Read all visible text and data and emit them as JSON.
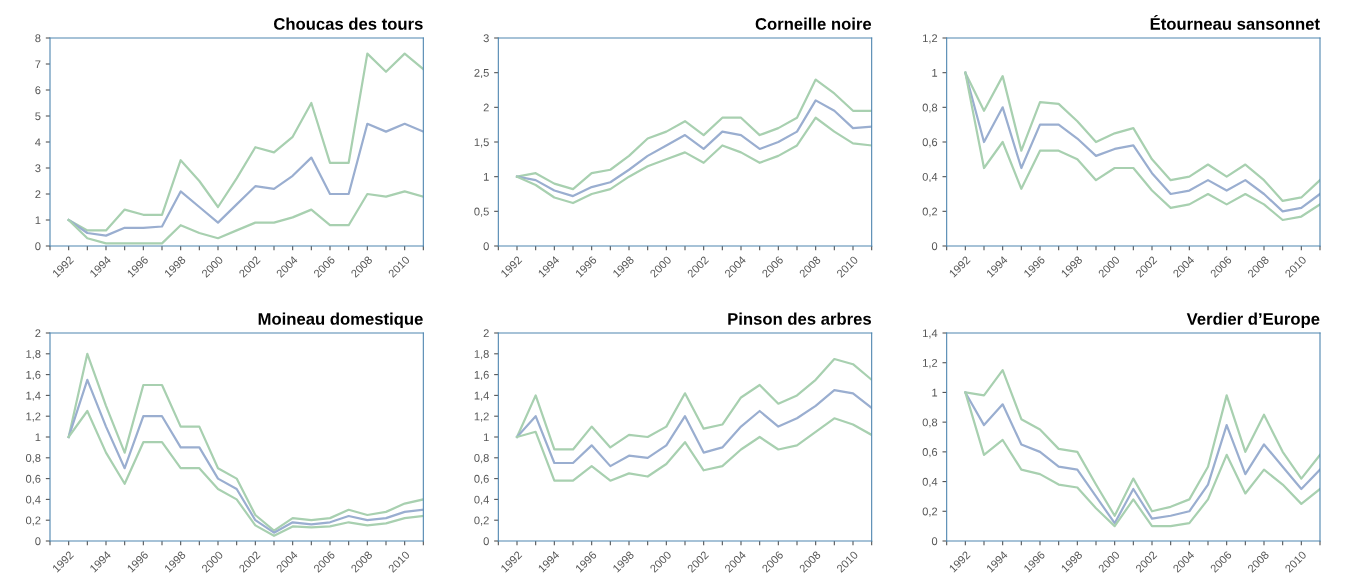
{
  "chart_data": [
    {
      "type": "line",
      "title": "Choucas des tours",
      "x": [
        1992,
        1993,
        1994,
        1995,
        1996,
        1997,
        1998,
        1999,
        2000,
        2001,
        2002,
        2003,
        2004,
        2005,
        2006,
        2007,
        2008,
        2009,
        2010,
        2011
      ],
      "xlim": [
        1991,
        2011
      ],
      "xticks": [
        {
          "value": 1991,
          "label": null
        },
        1992,
        {
          "value": 1993,
          "label": null
        },
        1994,
        {
          "value": 1995,
          "label": null
        },
        1996,
        {
          "value": 1997,
          "label": null
        },
        1998,
        {
          "value": 1999,
          "label": null
        },
        2000,
        {
          "value": 2001,
          "label": null
        },
        2002,
        {
          "value": 2003,
          "label": null
        },
        2004,
        {
          "value": 2005,
          "label": null
        },
        2006,
        {
          "value": 2007,
          "label": null
        },
        2008,
        {
          "value": 2009,
          "label": null
        },
        2010,
        {
          "value": 2011,
          "label": null
        }
      ],
      "ylim": [
        0,
        8
      ],
      "yticks": [
        0,
        1,
        2,
        3,
        4,
        5,
        6,
        7,
        8
      ],
      "series": [
        {
          "color": "#a8d0b0",
          "values": [
            1.0,
            0.6,
            0.6,
            1.4,
            1.2,
            1.2,
            3.3,
            2.5,
            1.5,
            2.6,
            3.8,
            3.6,
            4.2,
            5.5,
            3.2,
            3.2,
            7.4,
            6.7,
            7.4,
            6.8
          ]
        },
        {
          "color": "#9aaed0",
          "values": [
            1.0,
            0.5,
            0.4,
            0.7,
            0.7,
            0.75,
            2.1,
            1.5,
            0.9,
            1.6,
            2.3,
            2.2,
            2.7,
            3.4,
            2.0,
            2.0,
            4.7,
            4.4,
            4.7,
            4.4
          ]
        },
        {
          "color": "#a8d0b0",
          "values": [
            1.0,
            0.3,
            0.1,
            0.1,
            0.1,
            0.1,
            0.8,
            0.5,
            0.3,
            0.6,
            0.9,
            0.9,
            1.1,
            1.4,
            0.8,
            0.8,
            2.0,
            1.9,
            2.1,
            1.9
          ]
        }
      ]
    },
    {
      "type": "line",
      "title": "Corneille noire",
      "x": [
        1992,
        1993,
        1994,
        1995,
        1996,
        1997,
        1998,
        1999,
        2000,
        2001,
        2002,
        2003,
        2004,
        2005,
        2006,
        2007,
        2008,
        2009,
        2010,
        2011
      ],
      "xlim": [
        1991,
        2011
      ],
      "xticks": [
        {
          "value": 1991,
          "label": null
        },
        1992,
        {
          "value": 1993,
          "label": null
        },
        1994,
        {
          "value": 1995,
          "label": null
        },
        1996,
        {
          "value": 1997,
          "label": null
        },
        1998,
        {
          "value": 1999,
          "label": null
        },
        2000,
        {
          "value": 2001,
          "label": null
        },
        2002,
        {
          "value": 2003,
          "label": null
        },
        2004,
        {
          "value": 2005,
          "label": null
        },
        2006,
        {
          "value": 2007,
          "label": null
        },
        2008,
        {
          "value": 2009,
          "label": null
        },
        2010,
        {
          "value": 2011,
          "label": null
        }
      ],
      "ylim": [
        0,
        3
      ],
      "yticks": [
        0,
        {
          "value": 0.5,
          "label": "0,5"
        },
        1,
        {
          "value": 1.5,
          "label": "1,5"
        },
        2,
        {
          "value": 2.5,
          "label": "2,5"
        },
        3
      ],
      "series": [
        {
          "color": "#a8d0b0",
          "values": [
            1.0,
            1.05,
            0.9,
            0.82,
            1.05,
            1.1,
            1.3,
            1.55,
            1.65,
            1.8,
            1.6,
            1.85,
            1.85,
            1.6,
            1.7,
            1.85,
            2.4,
            2.2,
            1.95,
            1.95
          ]
        },
        {
          "color": "#9aaed0",
          "values": [
            1.0,
            0.95,
            0.8,
            0.72,
            0.85,
            0.92,
            1.1,
            1.3,
            1.45,
            1.6,
            1.4,
            1.65,
            1.6,
            1.4,
            1.5,
            1.65,
            2.1,
            1.95,
            1.7,
            1.72
          ]
        },
        {
          "color": "#a8d0b0",
          "values": [
            1.0,
            0.88,
            0.7,
            0.62,
            0.75,
            0.82,
            1.0,
            1.15,
            1.25,
            1.35,
            1.2,
            1.45,
            1.35,
            1.2,
            1.3,
            1.45,
            1.85,
            1.65,
            1.48,
            1.45
          ]
        }
      ]
    },
    {
      "type": "line",
      "title": "Étourneau sansonnet",
      "x": [
        1992,
        1993,
        1994,
        1995,
        1996,
        1997,
        1998,
        1999,
        2000,
        2001,
        2002,
        2003,
        2004,
        2005,
        2006,
        2007,
        2008,
        2009,
        2010,
        2011
      ],
      "xlim": [
        1991,
        2011
      ],
      "xticks": [
        {
          "value": 1991,
          "label": null
        },
        1992,
        {
          "value": 1993,
          "label": null
        },
        1994,
        {
          "value": 1995,
          "label": null
        },
        1996,
        {
          "value": 1997,
          "label": null
        },
        1998,
        {
          "value": 1999,
          "label": null
        },
        2000,
        {
          "value": 2001,
          "label": null
        },
        2002,
        {
          "value": 2003,
          "label": null
        },
        2004,
        {
          "value": 2005,
          "label": null
        },
        2006,
        {
          "value": 2007,
          "label": null
        },
        2008,
        {
          "value": 2009,
          "label": null
        },
        2010,
        {
          "value": 2011,
          "label": null
        }
      ],
      "ylim": [
        0,
        1.2
      ],
      "yticks": [
        0,
        {
          "value": 0.2,
          "label": "0,2"
        },
        {
          "value": 0.4,
          "label": "0,4"
        },
        {
          "value": 0.6,
          "label": "0,6"
        },
        {
          "value": 0.8,
          "label": "0,8"
        },
        1,
        {
          "value": 1.2,
          "label": "1,2"
        }
      ],
      "series": [
        {
          "color": "#a8d0b0",
          "values": [
            1.0,
            0.78,
            0.98,
            0.55,
            0.83,
            0.82,
            0.72,
            0.6,
            0.65,
            0.68,
            0.5,
            0.38,
            0.4,
            0.47,
            0.4,
            0.47,
            0.38,
            0.26,
            0.28,
            0.38
          ]
        },
        {
          "color": "#9aaed0",
          "values": [
            1.0,
            0.6,
            0.8,
            0.45,
            0.7,
            0.7,
            0.62,
            0.52,
            0.56,
            0.58,
            0.42,
            0.3,
            0.32,
            0.38,
            0.32,
            0.38,
            0.3,
            0.2,
            0.22,
            0.3
          ]
        },
        {
          "color": "#a8d0b0",
          "values": [
            1.0,
            0.45,
            0.6,
            0.33,
            0.55,
            0.55,
            0.5,
            0.38,
            0.45,
            0.45,
            0.32,
            0.22,
            0.24,
            0.3,
            0.24,
            0.3,
            0.24,
            0.15,
            0.17,
            0.24
          ]
        }
      ]
    },
    {
      "type": "line",
      "title": "Moineau domestique",
      "x": [
        1992,
        1993,
        1994,
        1995,
        1996,
        1997,
        1998,
        1999,
        2000,
        2001,
        2002,
        2003,
        2004,
        2005,
        2006,
        2007,
        2008,
        2009,
        2010,
        2011
      ],
      "xlim": [
        1991,
        2011
      ],
      "xticks": [
        {
          "value": 1991,
          "label": null
        },
        1992,
        {
          "value": 1993,
          "label": null
        },
        1994,
        {
          "value": 1995,
          "label": null
        },
        1996,
        {
          "value": 1997,
          "label": null
        },
        1998,
        {
          "value": 1999,
          "label": null
        },
        2000,
        {
          "value": 2001,
          "label": null
        },
        2002,
        {
          "value": 2003,
          "label": null
        },
        2004,
        {
          "value": 2005,
          "label": null
        },
        2006,
        {
          "value": 2007,
          "label": null
        },
        2008,
        {
          "value": 2009,
          "label": null
        },
        2010,
        {
          "value": 2011,
          "label": null
        }
      ],
      "ylim": [
        0,
        2
      ],
      "yticks": [
        0,
        {
          "value": 0.2,
          "label": "0,2"
        },
        {
          "value": 0.4,
          "label": "0,4"
        },
        {
          "value": 0.6,
          "label": "0,6"
        },
        {
          "value": 0.8,
          "label": "0,8"
        },
        1,
        {
          "value": 1.2,
          "label": "1,2"
        },
        {
          "value": 1.4,
          "label": "1,4"
        },
        {
          "value": 1.6,
          "label": "1,6"
        },
        {
          "value": 1.8,
          "label": "1,8"
        },
        2
      ],
      "series": [
        {
          "color": "#a8d0b0",
          "values": [
            1.0,
            1.8,
            1.3,
            0.85,
            1.5,
            1.5,
            1.1,
            1.1,
            0.7,
            0.6,
            0.25,
            0.1,
            0.22,
            0.2,
            0.22,
            0.3,
            0.25,
            0.28,
            0.36,
            0.4
          ]
        },
        {
          "color": "#9aaed0",
          "values": [
            1.0,
            1.55,
            1.1,
            0.7,
            1.2,
            1.2,
            0.9,
            0.9,
            0.6,
            0.5,
            0.2,
            0.08,
            0.18,
            0.16,
            0.18,
            0.24,
            0.2,
            0.22,
            0.28,
            0.3
          ]
        },
        {
          "color": "#a8d0b0",
          "values": [
            1.0,
            1.25,
            0.85,
            0.55,
            0.95,
            0.95,
            0.7,
            0.7,
            0.5,
            0.4,
            0.15,
            0.05,
            0.14,
            0.13,
            0.14,
            0.18,
            0.15,
            0.17,
            0.22,
            0.24
          ]
        }
      ]
    },
    {
      "type": "line",
      "title": "Pinson des arbres",
      "x": [
        1992,
        1993,
        1994,
        1995,
        1996,
        1997,
        1998,
        1999,
        2000,
        2001,
        2002,
        2003,
        2004,
        2005,
        2006,
        2007,
        2008,
        2009,
        2010,
        2011
      ],
      "xlim": [
        1991,
        2011
      ],
      "xticks": [
        {
          "value": 1991,
          "label": null
        },
        1992,
        {
          "value": 1993,
          "label": null
        },
        1994,
        {
          "value": 1995,
          "label": null
        },
        1996,
        {
          "value": 1997,
          "label": null
        },
        1998,
        {
          "value": 1999,
          "label": null
        },
        2000,
        {
          "value": 2001,
          "label": null
        },
        2002,
        {
          "value": 2003,
          "label": null
        },
        2004,
        {
          "value": 2005,
          "label": null
        },
        2006,
        {
          "value": 2007,
          "label": null
        },
        2008,
        {
          "value": 2009,
          "label": null
        },
        2010,
        {
          "value": 2011,
          "label": null
        }
      ],
      "ylim": [
        0,
        2
      ],
      "yticks": [
        0,
        {
          "value": 0.2,
          "label": "0,2"
        },
        {
          "value": 0.4,
          "label": "0,4"
        },
        {
          "value": 0.6,
          "label": "0,6"
        },
        {
          "value": 0.8,
          "label": "0,8"
        },
        1,
        {
          "value": 1.2,
          "label": "1,2"
        },
        {
          "value": 1.4,
          "label": "1,4"
        },
        {
          "value": 1.6,
          "label": "1,6"
        },
        {
          "value": 1.8,
          "label": "1,8"
        },
        2
      ],
      "series": [
        {
          "color": "#a8d0b0",
          "values": [
            1.0,
            1.4,
            0.88,
            0.88,
            1.1,
            0.9,
            1.02,
            1.0,
            1.1,
            1.42,
            1.08,
            1.12,
            1.38,
            1.5,
            1.32,
            1.4,
            1.55,
            1.75,
            1.7,
            1.55
          ]
        },
        {
          "color": "#9aaed0",
          "values": [
            1.0,
            1.2,
            0.75,
            0.75,
            0.92,
            0.72,
            0.82,
            0.8,
            0.92,
            1.2,
            0.85,
            0.9,
            1.1,
            1.25,
            1.1,
            1.18,
            1.3,
            1.45,
            1.42,
            1.28
          ]
        },
        {
          "color": "#a8d0b0",
          "values": [
            1.0,
            1.05,
            0.58,
            0.58,
            0.72,
            0.58,
            0.65,
            0.62,
            0.74,
            0.95,
            0.68,
            0.72,
            0.88,
            1.0,
            0.88,
            0.92,
            1.05,
            1.18,
            1.12,
            1.02
          ]
        }
      ]
    },
    {
      "type": "line",
      "title": "Verdier d’Europe",
      "x": [
        1992,
        1993,
        1994,
        1995,
        1996,
        1997,
        1998,
        1999,
        2000,
        2001,
        2002,
        2003,
        2004,
        2005,
        2006,
        2007,
        2008,
        2009,
        2010,
        2011
      ],
      "xlim": [
        1991,
        2011
      ],
      "xticks": [
        {
          "value": 1991,
          "label": null
        },
        1992,
        {
          "value": 1993,
          "label": null
        },
        1994,
        {
          "value": 1995,
          "label": null
        },
        1996,
        {
          "value": 1997,
          "label": null
        },
        1998,
        {
          "value": 1999,
          "label": null
        },
        2000,
        {
          "value": 2001,
          "label": null
        },
        2002,
        {
          "value": 2003,
          "label": null
        },
        2004,
        {
          "value": 2005,
          "label": null
        },
        2006,
        {
          "value": 2007,
          "label": null
        },
        2008,
        {
          "value": 2009,
          "label": null
        },
        2010,
        {
          "value": 2011,
          "label": null
        }
      ],
      "ylim": [
        0,
        1.4
      ],
      "yticks": [
        0,
        {
          "value": 0.2,
          "label": "0,2"
        },
        {
          "value": 0.4,
          "label": "0,4"
        },
        {
          "value": 0.6,
          "label": "0,6"
        },
        {
          "value": 0.8,
          "label": "0,8"
        },
        1,
        {
          "value": 1.2,
          "label": "1,2"
        },
        {
          "value": 1.4,
          "label": "1,4"
        }
      ],
      "series": [
        {
          "color": "#a8d0b0",
          "values": [
            1.0,
            0.98,
            1.15,
            0.82,
            0.75,
            0.62,
            0.6,
            0.38,
            0.17,
            0.42,
            0.2,
            0.23,
            0.28,
            0.5,
            0.98,
            0.6,
            0.85,
            0.6,
            0.42,
            0.58
          ]
        },
        {
          "color": "#9aaed0",
          "values": [
            1.0,
            0.78,
            0.92,
            0.65,
            0.6,
            0.5,
            0.48,
            0.3,
            0.12,
            0.35,
            0.15,
            0.17,
            0.2,
            0.38,
            0.78,
            0.45,
            0.65,
            0.5,
            0.35,
            0.48
          ]
        },
        {
          "color": "#a8d0b0",
          "values": [
            1.0,
            0.58,
            0.68,
            0.48,
            0.45,
            0.38,
            0.36,
            0.22,
            0.1,
            0.28,
            0.1,
            0.1,
            0.12,
            0.28,
            0.58,
            0.32,
            0.48,
            0.38,
            0.25,
            0.35
          ]
        }
      ]
    }
  ]
}
